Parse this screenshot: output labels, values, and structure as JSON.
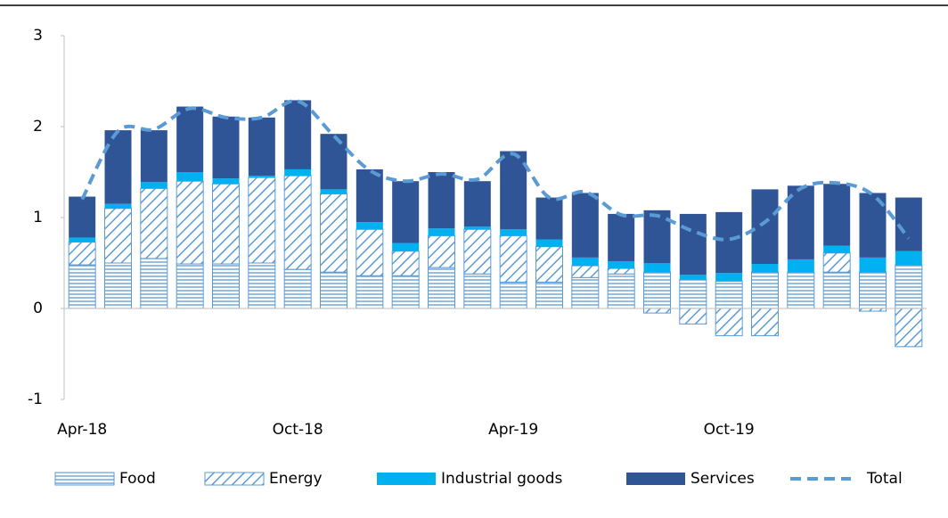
{
  "chart_data": {
    "type": "stacked-bar-line",
    "categories": [
      "Apr-18",
      null,
      null,
      null,
      null,
      null,
      "Oct-18",
      null,
      null,
      null,
      null,
      null,
      "Apr-19",
      null,
      null,
      null,
      null,
      null,
      "Oct-19",
      null,
      null,
      null,
      null,
      null
    ],
    "series": [
      {
        "name": "Food",
        "color": "#5b9bd5",
        "pattern": "horizontal",
        "values": [
          0.48,
          0.5,
          0.55,
          0.49,
          0.49,
          0.5,
          0.43,
          0.4,
          0.36,
          0.36,
          0.45,
          0.38,
          0.29,
          0.29,
          0.34,
          0.38,
          0.4,
          0.32,
          0.3,
          0.4,
          0.4,
          0.4,
          0.4,
          0.48
        ]
      },
      {
        "name": "Energy",
        "color": "#5b9bd5",
        "pattern": "diagonal",
        "values": [
          0.25,
          0.6,
          0.77,
          0.91,
          0.88,
          0.94,
          1.03,
          0.86,
          0.51,
          0.27,
          0.35,
          0.49,
          0.51,
          0.39,
          0.13,
          0.06,
          -0.05,
          -0.17,
          -0.3,
          -0.3,
          0,
          0.21,
          -0.03,
          -0.42
        ]
      },
      {
        "name": "Industrial goods",
        "color": "#00b0f0",
        "pattern": "solid",
        "values": [
          0.05,
          0.05,
          0.07,
          0.1,
          0.06,
          0.02,
          0.07,
          0.05,
          0.08,
          0.09,
          0.08,
          0.03,
          0.07,
          0.08,
          0.09,
          0.08,
          0.1,
          0.05,
          0.09,
          0.09,
          0.14,
          0.08,
          0.16,
          0.15
        ]
      },
      {
        "name": "Services",
        "color": "#2f5597",
        "pattern": "solid",
        "values": [
          0.45,
          0.81,
          0.57,
          0.72,
          0.68,
          0.64,
          0.76,
          0.61,
          0.58,
          0.68,
          0.62,
          0.5,
          0.86,
          0.46,
          0.71,
          0.52,
          0.58,
          0.67,
          0.67,
          0.82,
          0.81,
          0.68,
          0.71,
          0.59
        ]
      },
      {
        "name": "Total",
        "color": "#5b9bd5",
        "kind": "line",
        "dashed": true,
        "values": [
          1.2,
          1.95,
          1.97,
          2.2,
          2.1,
          2.1,
          2.28,
          1.9,
          1.52,
          1.4,
          1.48,
          1.42,
          1.7,
          1.22,
          1.28,
          1.03,
          1.02,
          0.85,
          0.76,
          0.95,
          1.32,
          1.38,
          1.25,
          0.77
        ]
      }
    ],
    "ylim": [
      -1,
      3
    ],
    "yticks": [
      -1,
      0,
      1,
      2,
      3
    ],
    "legend": "bottom"
  }
}
